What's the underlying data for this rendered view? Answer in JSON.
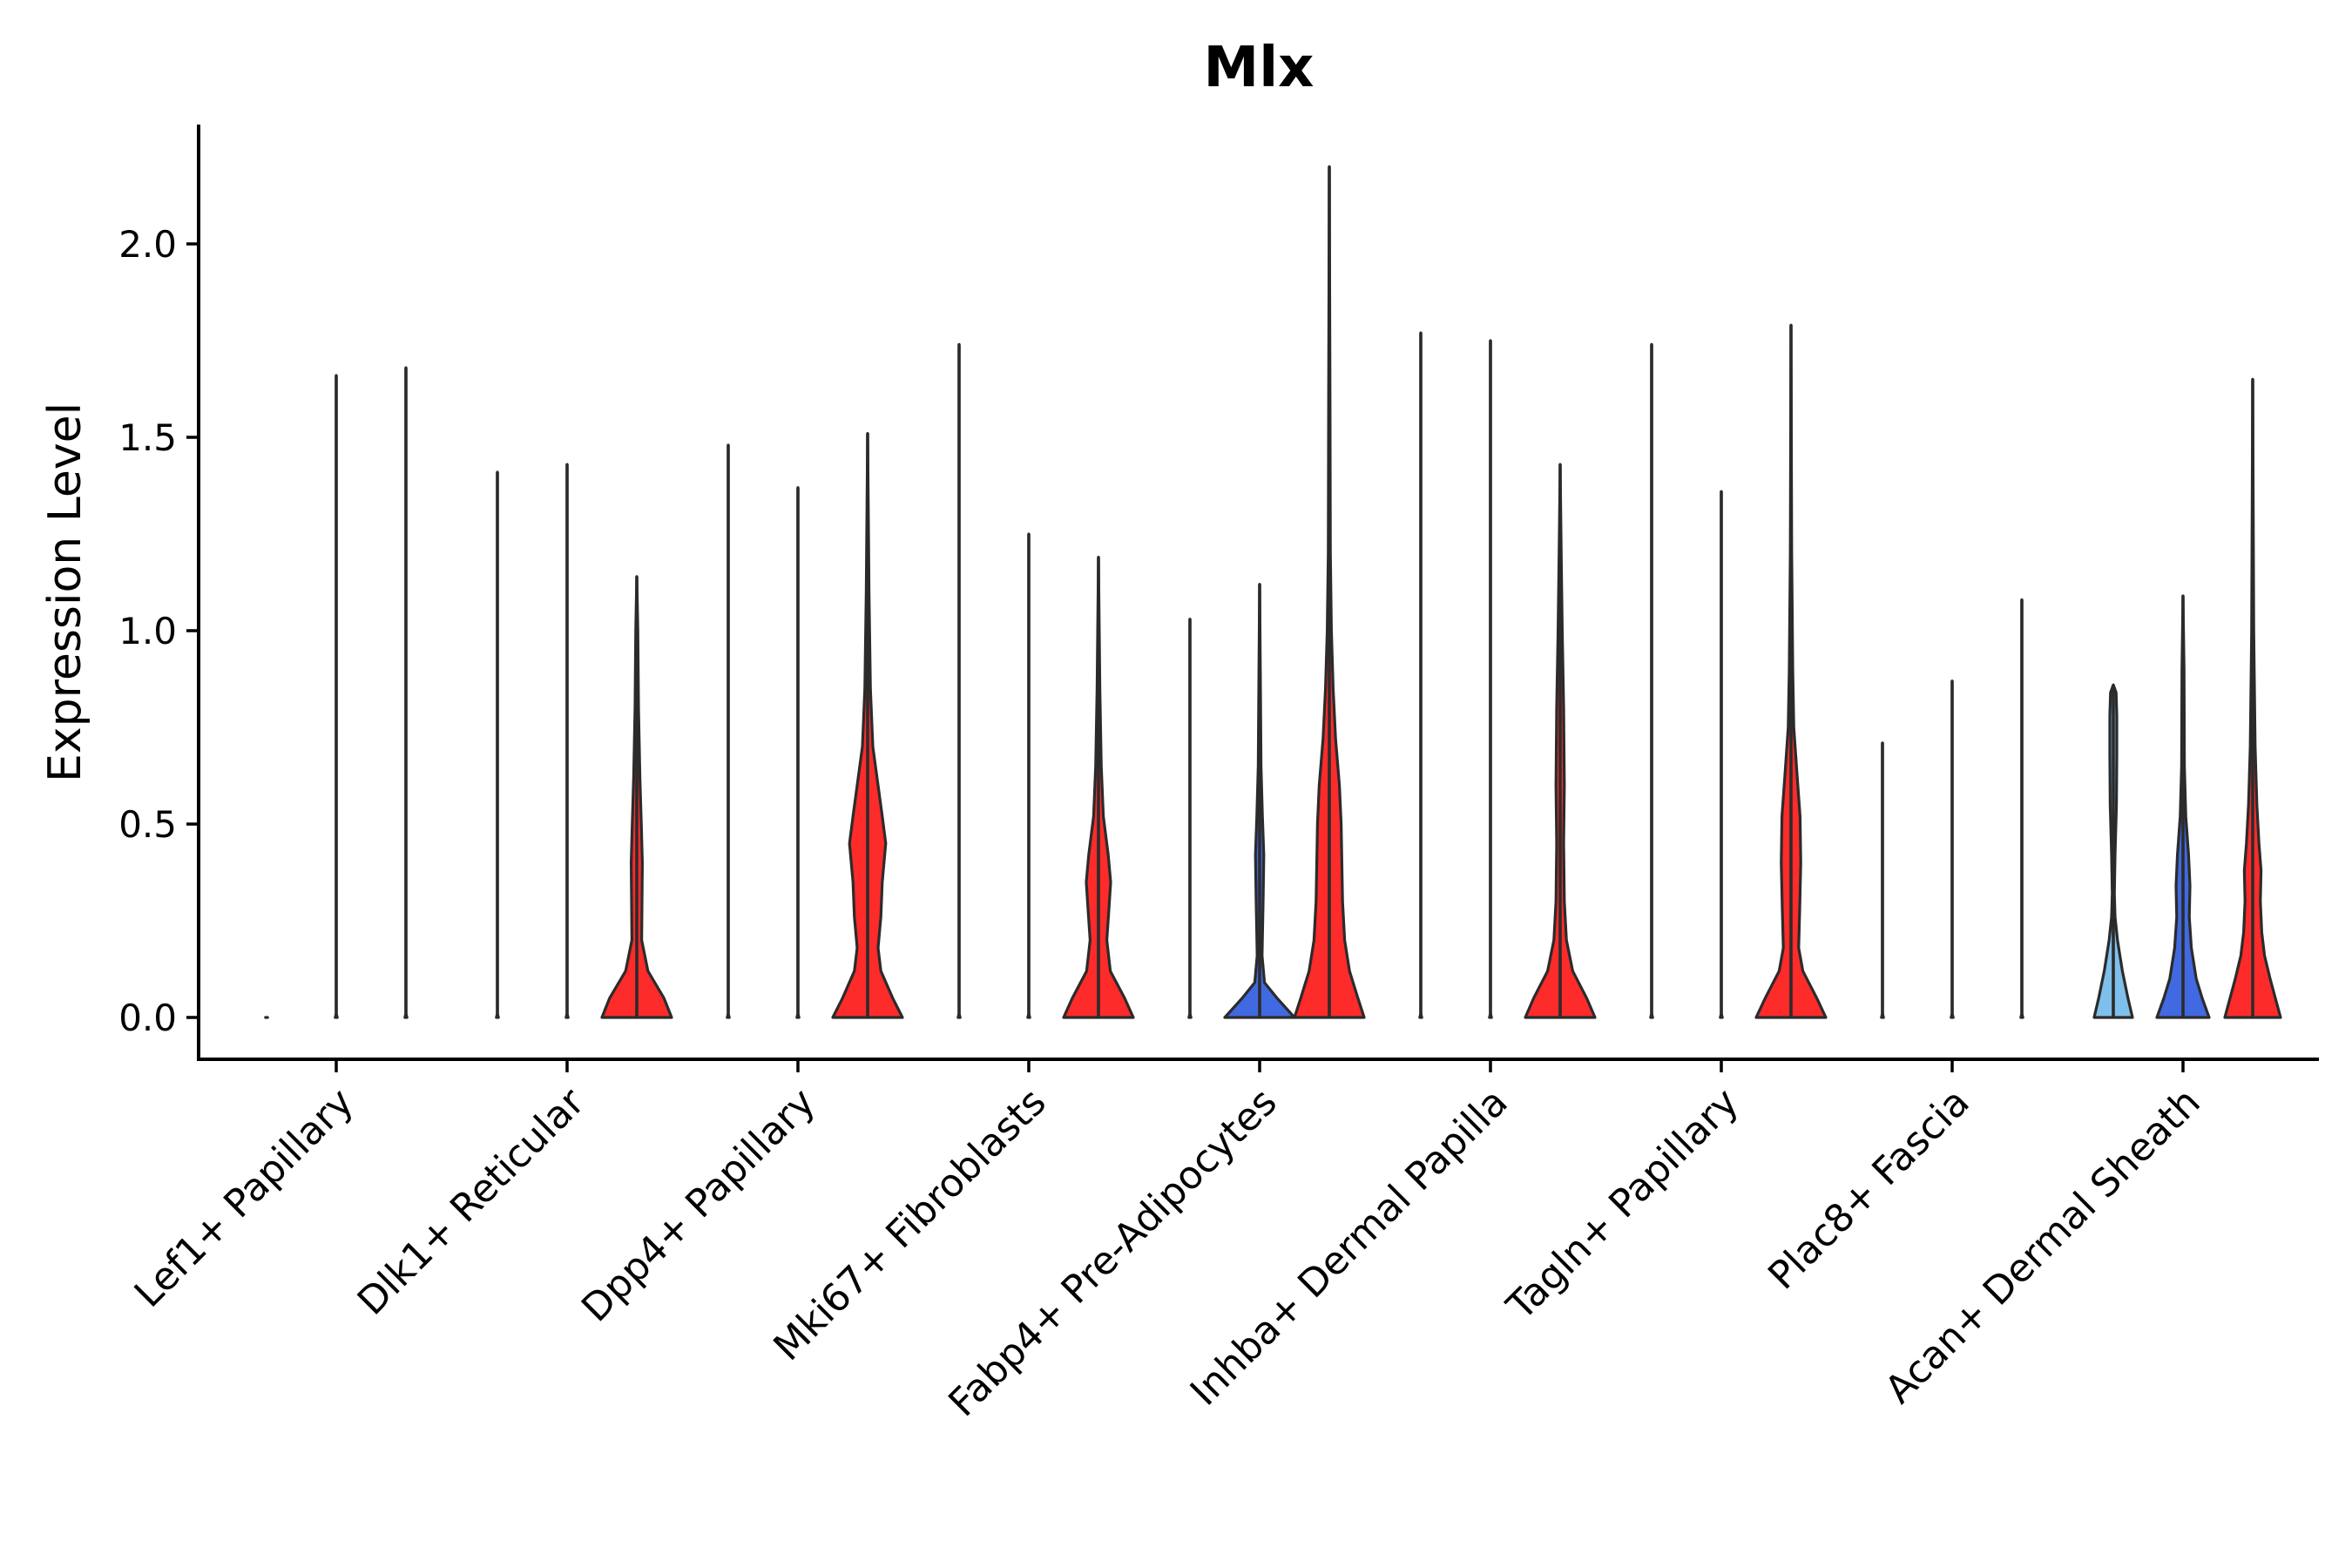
{
  "chart_data": {
    "type": "violin",
    "title": "Mlx",
    "xlabel": "",
    "ylabel": "Expression Level",
    "ylim": [
      -0.11,
      2.31
    ],
    "yticks": [
      0.0,
      0.5,
      1.0,
      1.5,
      2.0
    ],
    "ytick_labels": [
      "0.0",
      "0.5",
      "1.0",
      "1.5",
      "2.0"
    ],
    "grid": false,
    "colors": {
      "group1": "#7fbfeb",
      "group2": "#4169e1",
      "group3": "#fe2b2b",
      "outline": "#2b2b2b"
    },
    "categories": [
      "Lef1+ Papillary",
      "Dlk1+ Reticular",
      "Dpp4+ Papillary",
      "Mki67+ Fibroblasts",
      "Fabp4+ Pre-Adipocytes",
      "Inhba+ Dermal Papilla",
      "Tagln+ Papillary",
      "Plac8+ Fascia",
      "Acan+ Dermal Sheath"
    ],
    "violins": [
      {
        "category": 0,
        "group": 1,
        "max": 0.0,
        "kind": "flat"
      },
      {
        "category": 0,
        "group": 2,
        "max": 1.66,
        "kind": "flat"
      },
      {
        "category": 0,
        "group": 3,
        "max": 1.68,
        "kind": "flat"
      },
      {
        "category": 1,
        "group": 1,
        "max": 1.41,
        "kind": "flat"
      },
      {
        "category": 1,
        "group": 2,
        "max": 1.43,
        "kind": "flat"
      },
      {
        "category": 1,
        "group": 3,
        "max": 1.14,
        "kind": "red_a"
      },
      {
        "category": 2,
        "group": 1,
        "max": 1.48,
        "kind": "flat"
      },
      {
        "category": 2,
        "group": 2,
        "max": 1.37,
        "kind": "flat"
      },
      {
        "category": 2,
        "group": 3,
        "max": 1.51,
        "kind": "red_b"
      },
      {
        "category": 3,
        "group": 1,
        "max": 1.74,
        "kind": "flat"
      },
      {
        "category": 3,
        "group": 2,
        "max": 1.25,
        "kind": "flat"
      },
      {
        "category": 3,
        "group": 3,
        "max": 1.19,
        "kind": "red_c"
      },
      {
        "category": 4,
        "group": 1,
        "max": 1.03,
        "kind": "flat"
      },
      {
        "category": 4,
        "group": 2,
        "max": 1.12,
        "kind": "blue_small"
      },
      {
        "category": 4,
        "group": 3,
        "max": 2.2,
        "kind": "red_wide"
      },
      {
        "category": 5,
        "group": 1,
        "max": 1.77,
        "kind": "flat"
      },
      {
        "category": 5,
        "group": 2,
        "max": 1.75,
        "kind": "flat"
      },
      {
        "category": 5,
        "group": 3,
        "max": 1.43,
        "kind": "red_d"
      },
      {
        "category": 6,
        "group": 1,
        "max": 1.74,
        "kind": "flat"
      },
      {
        "category": 6,
        "group": 2,
        "max": 1.36,
        "kind": "flat"
      },
      {
        "category": 6,
        "group": 3,
        "max": 1.79,
        "kind": "red_e"
      },
      {
        "category": 7,
        "group": 1,
        "max": 0.71,
        "kind": "flat"
      },
      {
        "category": 7,
        "group": 2,
        "max": 0.87,
        "kind": "flat"
      },
      {
        "category": 7,
        "group": 3,
        "max": 1.08,
        "kind": "flat"
      },
      {
        "category": 8,
        "group": 1,
        "max": 0.86,
        "kind": "lightblue_full"
      },
      {
        "category": 8,
        "group": 2,
        "max": 1.09,
        "kind": "blue_full"
      },
      {
        "category": 8,
        "group": 3,
        "max": 1.65,
        "kind": "red_full"
      }
    ]
  }
}
